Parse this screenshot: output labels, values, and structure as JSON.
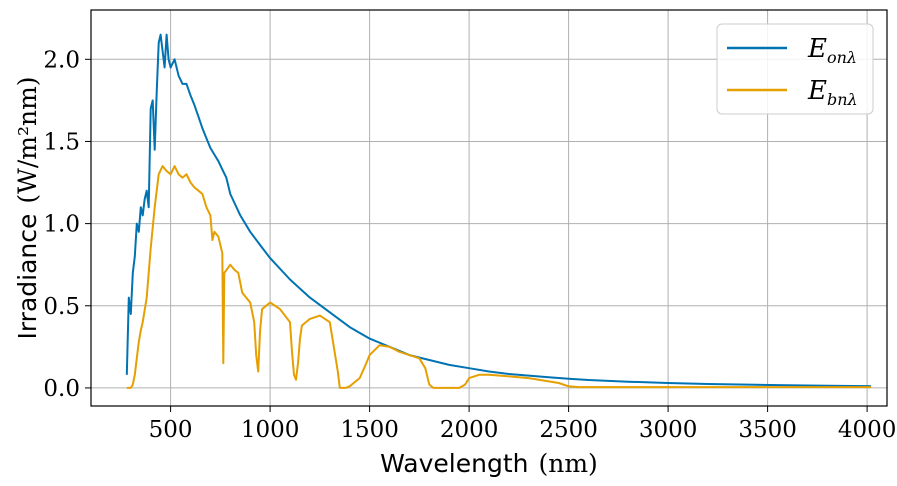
{
  "chart_data": {
    "type": "line",
    "title": "",
    "xlabel_text": "Wavelength",
    "xlabel_unit": "(nm)",
    "ylabel_text": "Irradiance",
    "ylabel_unit": "(W/m²nm)",
    "xlim": [
      100,
      4100
    ],
    "ylim": [
      -0.11,
      2.3
    ],
    "grid": true,
    "legend_position": "top-right",
    "x_ticks": [
      500,
      1000,
      1500,
      2000,
      2500,
      3000,
      3500,
      4000
    ],
    "x_tick_labels": [
      "500",
      "1000",
      "1500",
      "2000",
      "2500",
      "3000",
      "3500",
      "4000"
    ],
    "y_ticks": [
      0.0,
      0.5,
      1.0,
      1.5,
      2.0
    ],
    "y_tick_labels": [
      "0.0",
      "0.5",
      "1.0",
      "1.5",
      "2.0"
    ],
    "series": [
      {
        "name": "E_onλ",
        "legend_main": "E",
        "legend_sub": "onλ",
        "color": "#0173b2",
        "x": [
          280,
          290,
          300,
          310,
          320,
          330,
          340,
          350,
          360,
          370,
          380,
          390,
          400,
          410,
          420,
          430,
          440,
          450,
          460,
          470,
          480,
          490,
          500,
          520,
          540,
          560,
          580,
          600,
          620,
          640,
          660,
          680,
          700,
          720,
          740,
          760,
          780,
          800,
          850,
          900,
          950,
          1000,
          1100,
          1200,
          1300,
          1400,
          1500,
          1600,
          1700,
          1800,
          1900,
          2000,
          2100,
          2200,
          2300,
          2400,
          2500,
          2600,
          2800,
          3000,
          3200,
          3400,
          3600,
          3800,
          4000,
          4020
        ],
        "y": [
          0.08,
          0.55,
          0.45,
          0.7,
          0.8,
          1.0,
          0.95,
          1.1,
          1.05,
          1.15,
          1.2,
          1.1,
          1.7,
          1.75,
          1.45,
          1.8,
          2.1,
          2.15,
          2.05,
          1.95,
          2.15,
          2.0,
          1.95,
          2.0,
          1.9,
          1.85,
          1.85,
          1.78,
          1.72,
          1.65,
          1.58,
          1.52,
          1.46,
          1.42,
          1.38,
          1.33,
          1.28,
          1.18,
          1.05,
          0.95,
          0.87,
          0.79,
          0.66,
          0.55,
          0.46,
          0.37,
          0.3,
          0.25,
          0.2,
          0.17,
          0.14,
          0.12,
          0.1,
          0.085,
          0.075,
          0.065,
          0.056,
          0.048,
          0.038,
          0.03,
          0.024,
          0.02,
          0.016,
          0.013,
          0.011,
          0.01
        ]
      },
      {
        "name": "E_bnλ",
        "legend_main": "E",
        "legend_sub": "bnλ",
        "color": "#e69f00",
        "x": [
          280,
          300,
          310,
          320,
          330,
          340,
          350,
          360,
          380,
          400,
          420,
          440,
          460,
          480,
          500,
          520,
          540,
          560,
          580,
          600,
          620,
          640,
          660,
          680,
          700,
          710,
          720,
          740,
          760,
          765,
          770,
          800,
          820,
          840,
          860,
          880,
          900,
          920,
          930,
          940,
          950,
          960,
          980,
          1000,
          1050,
          1100,
          1110,
          1120,
          1130,
          1140,
          1150,
          1160,
          1200,
          1250,
          1300,
          1320,
          1340,
          1350,
          1360,
          1380,
          1400,
          1420,
          1450,
          1480,
          1500,
          1550,
          1600,
          1650,
          1700,
          1750,
          1780,
          1800,
          1820,
          1850,
          1900,
          1950,
          1980,
          2000,
          2050,
          2100,
          2200,
          2300,
          2400,
          2450,
          2500,
          2550,
          2600,
          3000,
          3500,
          4000,
          4020
        ],
        "y": [
          0.0,
          0.0,
          0.02,
          0.08,
          0.18,
          0.28,
          0.35,
          0.4,
          0.55,
          0.85,
          1.1,
          1.3,
          1.35,
          1.32,
          1.3,
          1.35,
          1.3,
          1.28,
          1.3,
          1.25,
          1.22,
          1.2,
          1.18,
          1.1,
          1.05,
          0.9,
          0.95,
          0.92,
          0.82,
          0.15,
          0.7,
          0.75,
          0.72,
          0.7,
          0.58,
          0.55,
          0.52,
          0.4,
          0.2,
          0.1,
          0.35,
          0.48,
          0.5,
          0.52,
          0.48,
          0.4,
          0.22,
          0.08,
          0.05,
          0.15,
          0.3,
          0.38,
          0.42,
          0.44,
          0.4,
          0.25,
          0.1,
          0.0,
          0.0,
          0.0,
          0.01,
          0.03,
          0.06,
          0.14,
          0.2,
          0.26,
          0.25,
          0.22,
          0.2,
          0.18,
          0.12,
          0.02,
          0.0,
          0.0,
          0.0,
          0.0,
          0.02,
          0.06,
          0.08,
          0.08,
          0.07,
          0.06,
          0.04,
          0.03,
          0.01,
          0.005,
          0.005,
          0.005,
          0.005,
          0.005,
          0.005
        ]
      }
    ]
  }
}
